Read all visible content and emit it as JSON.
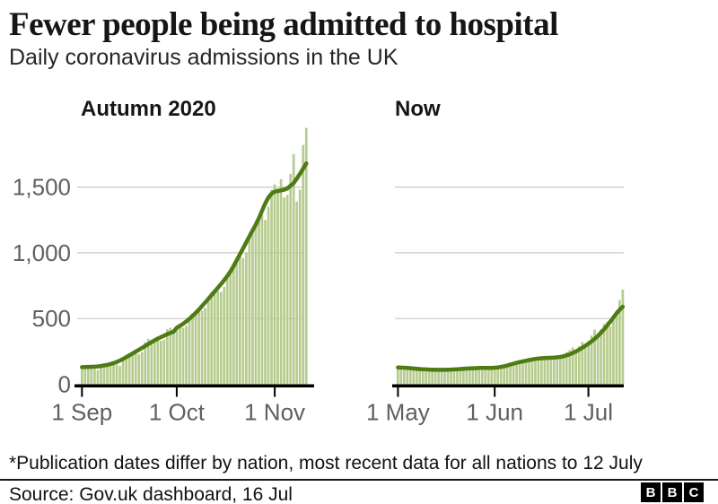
{
  "header": {
    "title": "Fewer people being admitted to hospital",
    "subtitle": "Daily coronavirus admissions in the UK"
  },
  "colors": {
    "bar": "#b6cc8f",
    "line": "#4f7b13",
    "grid": "#c8c8c8",
    "axis": "#000000",
    "axis_text": "#606060"
  },
  "chart_data": [
    {
      "type": "bar",
      "title": "Autumn 2020",
      "xlabel": "",
      "ylabel": "",
      "ylim": [
        0,
        2000
      ],
      "grid": true,
      "x_ticks": [
        {
          "label": "1 Sep",
          "day": 0
        },
        {
          "label": "1 Oct",
          "day": 30
        },
        {
          "label": "1 Nov",
          "day": 61
        }
      ],
      "y_ticks": [
        {
          "label": "0",
          "value": 0
        },
        {
          "label": "500",
          "value": 500
        },
        {
          "label": "1,000",
          "value": 1000
        },
        {
          "label": "1,500",
          "value": 1500
        }
      ],
      "series": [
        {
          "name": "daily-admissions-bars",
          "values": [
            125,
            140,
            138,
            128,
            118,
            108,
            150,
            160,
            155,
            165,
            175,
            150,
            140,
            200,
            225,
            235,
            240,
            255,
            230,
            245,
            320,
            345,
            340,
            350,
            365,
            330,
            340,
            420,
            430,
            415,
            425,
            450,
            430,
            445,
            510,
            540,
            555,
            570,
            560,
            580,
            660,
            700,
            690,
            710,
            700,
            740,
            830,
            880,
            900,
            930,
            980,
            960,
            1000,
            1120,
            1180,
            1210,
            1260,
            1290,
            1250,
            1350,
            1480,
            1520,
            1490,
            1560,
            1420,
            1440,
            1600,
            1750,
            1390,
            1480,
            1820,
            1950
          ]
        },
        {
          "name": "seven-day-average-line",
          "values": [
            130,
            131,
            132,
            133,
            134,
            136,
            139,
            143,
            148,
            154,
            161,
            170,
            181,
            193,
            206,
            220,
            234,
            248,
            262,
            276,
            291,
            306,
            320,
            334,
            347,
            359,
            370,
            381,
            391,
            400,
            430,
            445,
            460,
            478,
            498,
            520,
            543,
            568,
            595,
            622,
            650,
            678,
            706,
            734,
            762,
            792,
            824,
            858,
            900,
            945,
            990,
            1035,
            1080,
            1125,
            1170,
            1215,
            1265,
            1320,
            1375,
            1420,
            1450,
            1465,
            1470,
            1475,
            1480,
            1490,
            1510,
            1530,
            1565,
            1600,
            1640,
            1680
          ]
        }
      ]
    },
    {
      "type": "bar",
      "title": "Now",
      "xlabel": "",
      "ylabel": "",
      "ylim": [
        0,
        2000
      ],
      "grid": true,
      "x_ticks": [
        {
          "label": "1 May",
          "day": 0
        },
        {
          "label": "1 Jun",
          "day": 31
        },
        {
          "label": "1 Jul",
          "day": 61
        }
      ],
      "y_ticks": [
        {
          "label": "0",
          "value": 0
        },
        {
          "label": "500",
          "value": 500
        },
        {
          "label": "1,000",
          "value": 1000
        },
        {
          "label": "1,500",
          "value": 1500
        }
      ],
      "series": [
        {
          "name": "daily-admissions-bars",
          "values": [
            135,
            130,
            120,
            115,
            138,
            132,
            128,
            122,
            110,
            105,
            118,
            120,
            115,
            112,
            108,
            100,
            106,
            118,
            122,
            120,
            118,
            112,
            108,
            130,
            132,
            128,
            126,
            122,
            118,
            120,
            128,
            132,
            130,
            128,
            140,
            152,
            160,
            155,
            165,
            180,
            182,
            175,
            190,
            200,
            205,
            210,
            190,
            195,
            210,
            212,
            205,
            200,
            215,
            230,
            245,
            260,
            280,
            265,
            290,
            320,
            310,
            330,
            370,
            415,
            380,
            420,
            460,
            475,
            440,
            520,
            560,
            640,
            720
          ]
        },
        {
          "name": "seven-day-average-line",
          "values": [
            128,
            127,
            126,
            124,
            122,
            120,
            118,
            116,
            114,
            113,
            112,
            111,
            110,
            110,
            110,
            110,
            111,
            112,
            113,
            114,
            116,
            118,
            120,
            121,
            122,
            123,
            124,
            124,
            125,
            125,
            125,
            126,
            128,
            132,
            137,
            143,
            150,
            157,
            163,
            169,
            174,
            179,
            184,
            189,
            193,
            196,
            198,
            200,
            201,
            202,
            203,
            205,
            208,
            213,
            220,
            228,
            238,
            250,
            263,
            277,
            292,
            308,
            326,
            346,
            368,
            392,
            418,
            446,
            476,
            508,
            540,
            567,
            590
          ]
        }
      ]
    }
  ],
  "footer": {
    "footnote": "*Publication dates differ by nation, most recent data for all nations to 12 July",
    "source": "Source: Gov.uk dashboard, 16 Jul",
    "logo_letters": [
      "B",
      "B",
      "C"
    ]
  }
}
